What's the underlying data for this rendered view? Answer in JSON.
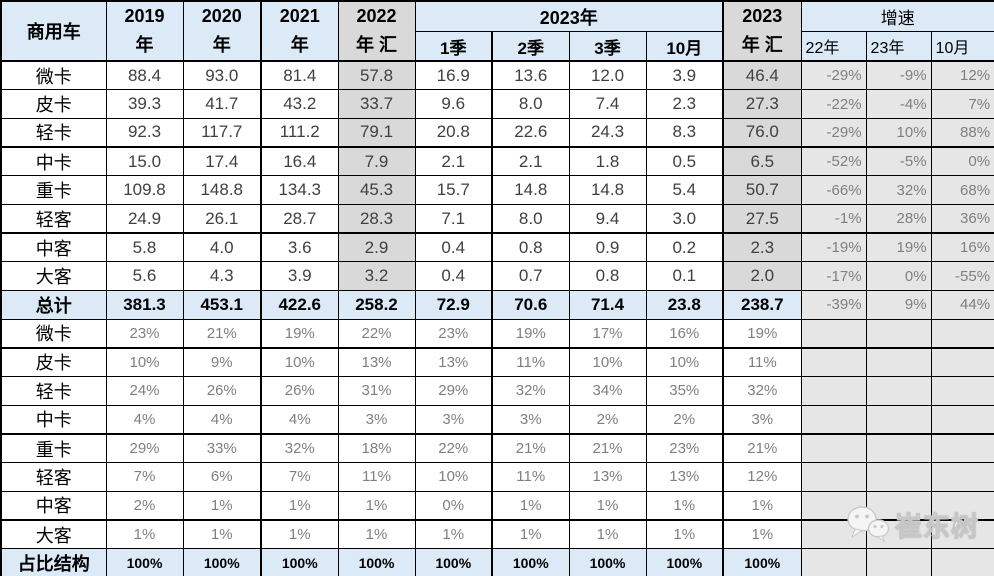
{
  "colors": {
    "header_blue": "#DCE9F6",
    "band_gray": "#D9D9D9",
    "growth_gray": "#E7E6E6",
    "value_text": "#404040",
    "muted_text": "#7F7F7F"
  },
  "chart_data": {
    "type": "table",
    "title": "商用车分车型销量与占比结构表",
    "header": {
      "corner": "商用车",
      "year_columns": [
        {
          "line1": "2019",
          "line2": "年"
        },
        {
          "line1": "2020",
          "line2": "年"
        },
        {
          "line1": "2021",
          "line2": "年"
        },
        {
          "line1": "2022",
          "line2": "年 汇"
        }
      ],
      "group_2023": {
        "label": "2023年",
        "quarters": [
          "1季",
          "2季",
          "3季",
          "10月"
        ]
      },
      "total_2023": {
        "line1": "2023",
        "line2": "年 汇"
      },
      "growth": {
        "label": "增速",
        "cols": [
          "22年",
          "23年",
          "10月"
        ]
      }
    },
    "rows": [
      {
        "label": "微卡",
        "section": "volume",
        "values": [
          "88.4",
          "93.0",
          "81.4",
          "57.8",
          "16.9",
          "13.6",
          "12.0",
          "3.9",
          "46.4"
        ],
        "growth": [
          "-29%",
          "-9%",
          "12%"
        ]
      },
      {
        "label": "皮卡",
        "section": "volume",
        "values": [
          "39.3",
          "41.7",
          "43.2",
          "33.7",
          "9.6",
          "8.0",
          "7.4",
          "2.3",
          "27.3"
        ],
        "growth": [
          "-22%",
          "-4%",
          "7%"
        ]
      },
      {
        "label": "轻卡",
        "section": "volume",
        "values": [
          "92.3",
          "117.7",
          "111.2",
          "79.1",
          "20.8",
          "22.6",
          "24.3",
          "8.3",
          "76.0"
        ],
        "growth": [
          "-29%",
          "10%",
          "88%"
        ]
      },
      {
        "label": "中卡",
        "section": "volume",
        "values": [
          "15.0",
          "17.4",
          "16.4",
          "7.9",
          "2.1",
          "2.1",
          "1.8",
          "0.5",
          "6.5"
        ],
        "growth": [
          "-52%",
          "-5%",
          "0%"
        ]
      },
      {
        "label": "重卡",
        "section": "volume",
        "values": [
          "109.8",
          "148.8",
          "134.3",
          "45.3",
          "15.7",
          "14.8",
          "14.8",
          "5.4",
          "50.7"
        ],
        "growth": [
          "-66%",
          "32%",
          "68%"
        ]
      },
      {
        "label": "轻客",
        "section": "volume",
        "values": [
          "24.9",
          "26.1",
          "28.7",
          "28.3",
          "7.1",
          "8.0",
          "9.4",
          "3.0",
          "27.5"
        ],
        "growth": [
          "-1%",
          "28%",
          "36%"
        ]
      },
      {
        "label": "中客",
        "section": "volume",
        "values": [
          "5.8",
          "4.0",
          "3.6",
          "2.9",
          "0.4",
          "0.8",
          "0.9",
          "0.2",
          "2.3"
        ],
        "growth": [
          "-19%",
          "19%",
          "16%"
        ]
      },
      {
        "label": "大客",
        "section": "volume",
        "values": [
          "5.6",
          "4.3",
          "3.9",
          "3.2",
          "0.4",
          "0.7",
          "0.8",
          "0.1",
          "2.0"
        ],
        "growth": [
          "-17%",
          "0%",
          "-55%"
        ]
      },
      {
        "label": "总计",
        "section": "total",
        "values": [
          "381.3",
          "453.1",
          "422.6",
          "258.2",
          "72.9",
          "70.6",
          "71.4",
          "23.8",
          "238.7"
        ],
        "growth": [
          "-39%",
          "9%",
          "44%"
        ]
      },
      {
        "label": "微卡",
        "section": "share",
        "values": [
          "23%",
          "21%",
          "19%",
          "22%",
          "23%",
          "19%",
          "17%",
          "16%",
          "19%"
        ],
        "growth": [
          "",
          "",
          ""
        ]
      },
      {
        "label": "皮卡",
        "section": "share",
        "values": [
          "10%",
          "9%",
          "10%",
          "13%",
          "13%",
          "11%",
          "10%",
          "10%",
          "11%"
        ],
        "growth": [
          "",
          "",
          ""
        ]
      },
      {
        "label": "轻卡",
        "section": "share",
        "values": [
          "24%",
          "26%",
          "26%",
          "31%",
          "29%",
          "32%",
          "34%",
          "35%",
          "32%"
        ],
        "growth": [
          "",
          "",
          ""
        ]
      },
      {
        "label": "中卡",
        "section": "share",
        "values": [
          "4%",
          "4%",
          "4%",
          "3%",
          "3%",
          "3%",
          "2%",
          "2%",
          "3%"
        ],
        "growth": [
          "",
          "",
          ""
        ]
      },
      {
        "label": "重卡",
        "section": "share",
        "values": [
          "29%",
          "33%",
          "32%",
          "18%",
          "22%",
          "21%",
          "21%",
          "23%",
          "21%"
        ],
        "growth": [
          "",
          "",
          ""
        ]
      },
      {
        "label": "轻客",
        "section": "share",
        "values": [
          "7%",
          "6%",
          "7%",
          "11%",
          "10%",
          "11%",
          "13%",
          "13%",
          "12%"
        ],
        "growth": [
          "",
          "",
          ""
        ]
      },
      {
        "label": "中客",
        "section": "share",
        "values": [
          "2%",
          "1%",
          "1%",
          "1%",
          "0%",
          "1%",
          "1%",
          "1%",
          "1%"
        ],
        "growth": [
          "",
          "",
          ""
        ]
      },
      {
        "label": "大客",
        "section": "share",
        "values": [
          "1%",
          "1%",
          "1%",
          "1%",
          "1%",
          "1%",
          "1%",
          "1%",
          "1%"
        ],
        "growth": [
          "",
          "",
          ""
        ]
      },
      {
        "label": "占比结构",
        "section": "footer",
        "values": [
          "100%",
          "100%",
          "100%",
          "100%",
          "100%",
          "100%",
          "100%",
          "100%",
          "100%"
        ],
        "growth": [
          "",
          "",
          ""
        ]
      }
    ]
  },
  "watermark": {
    "text": "崔东树",
    "icon": "wechat-icon"
  }
}
